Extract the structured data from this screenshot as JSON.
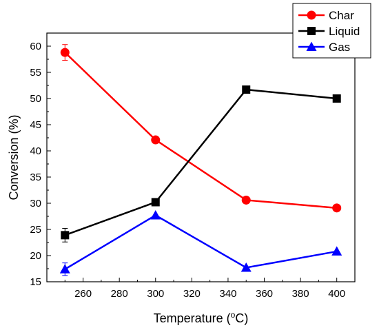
{
  "chart_data": {
    "type": "line",
    "xlabel": "Temperature (",
    "xlabel_unit_sup": "o",
    "xlabel_unit_tail": "C)",
    "ylabel": "Conversion (%)",
    "xlim": [
      240,
      410
    ],
    "ylim": [
      15,
      62.5
    ],
    "xticks": [
      260,
      280,
      300,
      320,
      340,
      360,
      380,
      400
    ],
    "yticks": [
      15,
      20,
      25,
      30,
      35,
      40,
      45,
      50,
      55,
      60
    ],
    "x": [
      250,
      300,
      350,
      400
    ],
    "legend_position": "top-right",
    "series": [
      {
        "name": "Char",
        "values": [
          58.8,
          42.1,
          30.6,
          29.1
        ],
        "errors": [
          1.5,
          0,
          0,
          0
        ],
        "color": "#ff0000",
        "marker": "circle"
      },
      {
        "name": "Liquid",
        "values": [
          23.9,
          30.2,
          51.7,
          50.0
        ],
        "errors": [
          1.3,
          0,
          0,
          0
        ],
        "color": "#000000",
        "marker": "square"
      },
      {
        "name": "Gas",
        "values": [
          17.4,
          27.7,
          17.7,
          20.8
        ],
        "errors": [
          1.2,
          0,
          0,
          0
        ],
        "color": "#0000ff",
        "marker": "triangle"
      }
    ]
  }
}
